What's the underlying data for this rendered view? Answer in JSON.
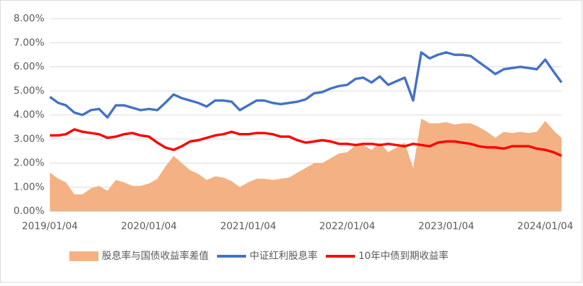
{
  "chart_data": {
    "type": "line-area",
    "x": [
      "2019/01/04",
      "2019/02/04",
      "2019/03/04",
      "2019/04/04",
      "2019/05/04",
      "2019/06/04",
      "2019/07/04",
      "2019/08/04",
      "2019/09/04",
      "2019/10/04",
      "2019/11/04",
      "2019/12/04",
      "2020/01/04",
      "2020/02/04",
      "2020/03/04",
      "2020/04/04",
      "2020/05/04",
      "2020/06/04",
      "2020/07/04",
      "2020/08/04",
      "2020/09/04",
      "2020/10/04",
      "2020/11/04",
      "2020/12/04",
      "2021/01/04",
      "2021/02/04",
      "2021/03/04",
      "2021/04/04",
      "2021/05/04",
      "2021/06/04",
      "2021/07/04",
      "2021/08/04",
      "2021/09/04",
      "2021/10/04",
      "2021/11/04",
      "2021/12/04",
      "2022/01/04",
      "2022/02/04",
      "2022/03/04",
      "2022/04/04",
      "2022/05/04",
      "2022/06/04",
      "2022/07/04",
      "2022/08/04",
      "2022/09/04",
      "2022/10/04",
      "2022/11/04",
      "2022/12/04",
      "2023/01/04",
      "2023/02/04",
      "2023/03/04",
      "2023/04/04",
      "2023/05/04",
      "2023/06/04",
      "2023/07/04",
      "2023/08/04",
      "2023/09/04",
      "2023/10/04",
      "2023/11/04",
      "2023/12/04",
      "2024/01/04",
      "2024/02/04",
      "2024/03/04"
    ],
    "series": [
      {
        "name": "股息率与国债收益率差值",
        "kind": "area",
        "color": "#f4b183",
        "values": [
          1.6,
          1.35,
          1.2,
          0.7,
          0.7,
          0.95,
          1.05,
          0.85,
          1.3,
          1.2,
          1.05,
          1.05,
          1.15,
          1.35,
          1.85,
          2.3,
          2.0,
          1.7,
          1.55,
          1.3,
          1.45,
          1.4,
          1.25,
          1.0,
          1.2,
          1.35,
          1.35,
          1.3,
          1.35,
          1.4,
          1.6,
          1.8,
          2.0,
          2.0,
          2.2,
          2.4,
          2.45,
          2.75,
          2.75,
          2.55,
          2.85,
          2.45,
          2.65,
          2.85,
          1.8,
          3.85,
          3.65,
          3.65,
          3.7,
          3.6,
          3.65,
          3.65,
          3.5,
          3.3,
          3.05,
          3.3,
          3.25,
          3.3,
          3.25,
          3.3,
          3.75,
          3.35,
          3.05
        ]
      },
      {
        "name": "中证红利股息率",
        "kind": "line",
        "color": "#4472c4",
        "values": [
          4.75,
          4.5,
          4.4,
          4.1,
          4.0,
          4.2,
          4.25,
          3.9,
          4.4,
          4.4,
          4.3,
          4.2,
          4.25,
          4.2,
          4.5,
          4.85,
          4.7,
          4.6,
          4.5,
          4.35,
          4.6,
          4.6,
          4.55,
          4.2,
          4.4,
          4.6,
          4.6,
          4.5,
          4.45,
          4.5,
          4.55,
          4.65,
          4.9,
          4.95,
          5.1,
          5.2,
          5.25,
          5.5,
          5.55,
          5.35,
          5.6,
          5.25,
          5.4,
          5.55,
          4.6,
          6.6,
          6.35,
          6.5,
          6.6,
          6.5,
          6.5,
          6.45,
          6.2,
          5.95,
          5.7,
          5.9,
          5.95,
          6.0,
          5.95,
          5.9,
          6.3,
          5.8,
          5.35
        ]
      },
      {
        "name": "10年中债到期收益率",
        "kind": "line",
        "color": "#ff0000",
        "values": [
          3.15,
          3.15,
          3.2,
          3.4,
          3.3,
          3.25,
          3.2,
          3.05,
          3.1,
          3.2,
          3.25,
          3.15,
          3.1,
          2.85,
          2.65,
          2.55,
          2.7,
          2.9,
          2.95,
          3.05,
          3.15,
          3.2,
          3.3,
          3.2,
          3.2,
          3.25,
          3.25,
          3.2,
          3.1,
          3.1,
          2.95,
          2.85,
          2.9,
          2.95,
          2.9,
          2.8,
          2.8,
          2.75,
          2.8,
          2.8,
          2.75,
          2.8,
          2.75,
          2.7,
          2.8,
          2.75,
          2.7,
          2.85,
          2.9,
          2.9,
          2.85,
          2.8,
          2.7,
          2.65,
          2.65,
          2.6,
          2.7,
          2.7,
          2.7,
          2.6,
          2.55,
          2.45,
          2.3
        ]
      }
    ],
    "xlim": [
      "2019/01/04",
      "2024/03/04"
    ],
    "xticks": [
      "2019/01/04",
      "2020/01/04",
      "2021/01/04",
      "2022/01/04",
      "2023/01/04",
      "2024/01/04"
    ],
    "ylim": [
      0,
      8
    ],
    "yticks": [
      {
        "value": 0,
        "label": "0.00%"
      },
      {
        "value": 1,
        "label": "1.00%"
      },
      {
        "value": 2,
        "label": "2.00%"
      },
      {
        "value": 3,
        "label": "3.00%"
      },
      {
        "value": 4,
        "label": "4.00%"
      },
      {
        "value": 5,
        "label": "5.00%"
      },
      {
        "value": 6,
        "label": "6.00%"
      },
      {
        "value": 7,
        "label": "7.00%"
      },
      {
        "value": 8,
        "label": "8.00%"
      }
    ],
    "grid": true,
    "legend": "bottom"
  }
}
